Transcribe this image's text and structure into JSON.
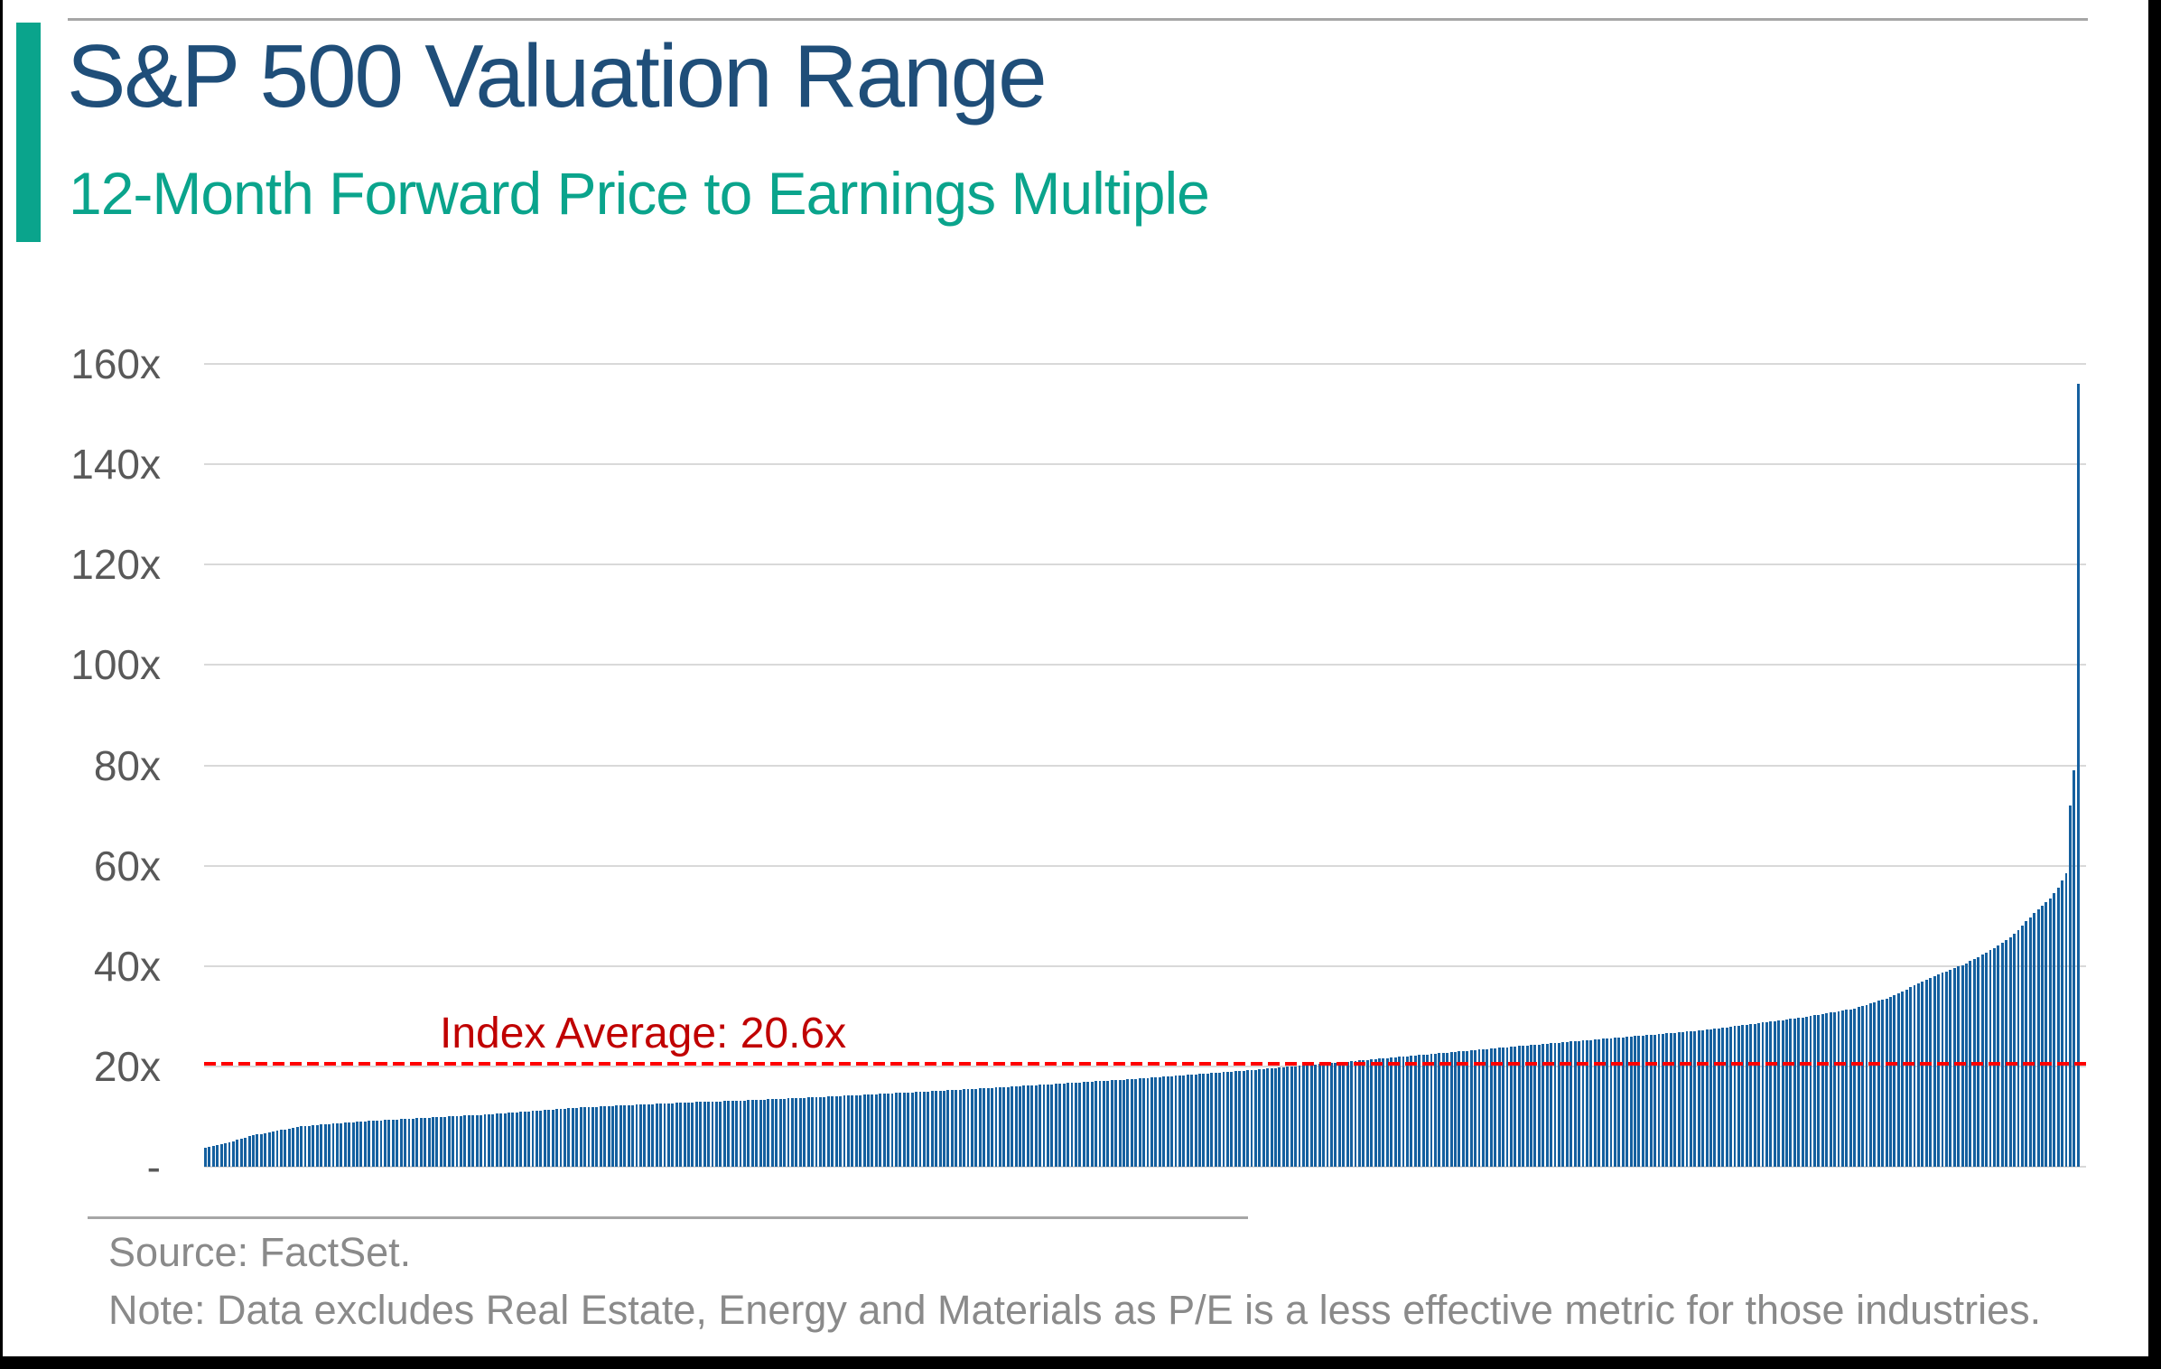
{
  "page": {
    "title": "S&P 500 Valuation Range",
    "subtitle": "12-Month Forward Price to Earnings Multiple"
  },
  "footer": {
    "source": "Source: FactSet.",
    "note": "Note: Data excludes Real Estate, Energy and Materials as P/E is a less effective metric for those industries."
  },
  "colors": {
    "title_blue": "#1F4E79",
    "accent_teal": "#0aa48c",
    "bar_blue": "#15609F",
    "average_line_red": "#FF0000",
    "average_text_red": "#C00000",
    "grid_gray": "#d9d9d9",
    "axis_text_gray": "#595959",
    "footer_text_gray": "#8a8a8a",
    "rule_gray": "#a6a6a6"
  },
  "chart_data": {
    "type": "bar",
    "title": "S&P 500 Valuation Range",
    "subtitle": "12-Month Forward Price to Earnings Multiple",
    "description": "Each thin bar is one S&P 500 company's 12-month forward P/E multiple, sorted ascending left to right.",
    "ylim": [
      0,
      160
    ],
    "grid": "horizontal",
    "tick_values": [
      160,
      140,
      120,
      100,
      80,
      60,
      40,
      20,
      0
    ],
    "tick_labels": [
      "160x",
      "140x",
      "120x",
      "100x",
      "80x",
      "60x",
      "40x",
      "20x",
      "-"
    ],
    "bar_count": 470,
    "average_line": {
      "label": "Index Average: 20.6x",
      "value": 20.6
    },
    "distribution_profile": [
      [
        0.0,
        3.8
      ],
      [
        0.01,
        4.6
      ],
      [
        0.025,
        6.2
      ],
      [
        0.05,
        8.0
      ],
      [
        0.075,
        8.8
      ],
      [
        0.1,
        9.4
      ],
      [
        0.15,
        10.4
      ],
      [
        0.2,
        11.8
      ],
      [
        0.25,
        12.7
      ],
      [
        0.3,
        13.4
      ],
      [
        0.35,
        14.3
      ],
      [
        0.4,
        15.3
      ],
      [
        0.45,
        16.4
      ],
      [
        0.5,
        17.6
      ],
      [
        0.55,
        19.0
      ],
      [
        0.6,
        20.6
      ],
      [
        0.65,
        22.3
      ],
      [
        0.7,
        24.0
      ],
      [
        0.75,
        25.6
      ],
      [
        0.8,
        27.2
      ],
      [
        0.85,
        29.6
      ],
      [
        0.88,
        31.5
      ],
      [
        0.9,
        33.8
      ],
      [
        0.92,
        37.5
      ],
      [
        0.94,
        40.5
      ],
      [
        0.955,
        43.5
      ],
      [
        0.965,
        46.0
      ],
      [
        0.975,
        50.0
      ],
      [
        0.985,
        53.5
      ],
      [
        0.99,
        56.0
      ],
      [
        0.9935,
        58.5
      ]
    ],
    "tail_values": [
      72,
      79,
      156
    ],
    "min_value": 3.8,
    "max_value": 156
  }
}
